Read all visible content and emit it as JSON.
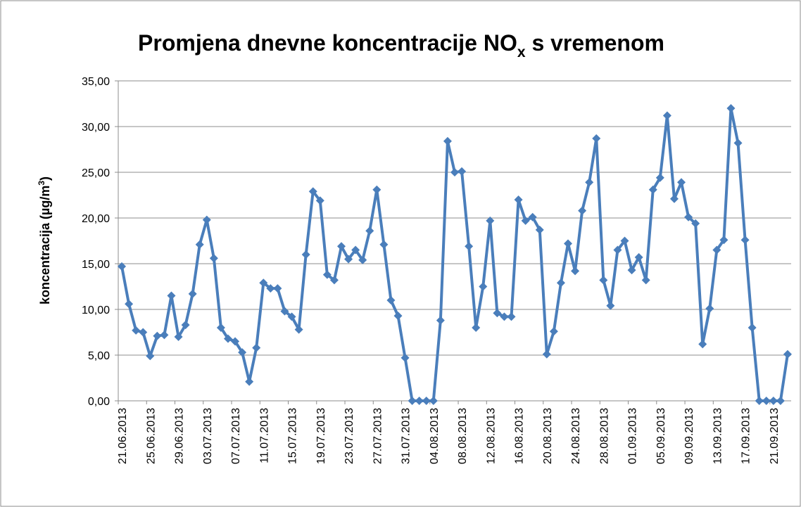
{
  "chart_data": {
    "type": "line",
    "title": [
      "Promjena dnevne koncentracije NO",
      "x",
      " s vremenom"
    ],
    "y_label": [
      "koncentracija (µg/m",
      "3",
      ")"
    ],
    "categories": [
      "21.06.2013",
      null,
      null,
      null,
      "25.06.2013",
      null,
      null,
      null,
      "29.06.2013",
      null,
      null,
      null,
      "03.07.2013",
      null,
      null,
      null,
      "07.07.2013",
      null,
      null,
      null,
      "11.07.2013",
      null,
      null,
      null,
      "15.07.2013",
      null,
      null,
      null,
      "19.07.2013",
      null,
      null,
      null,
      "23.07.2013",
      null,
      null,
      null,
      "27.07.2013",
      null,
      null,
      null,
      "31.07.2013",
      null,
      null,
      null,
      "04.08.2013",
      null,
      null,
      null,
      "08.08.2013",
      null,
      null,
      null,
      "12.08.2013",
      null,
      null,
      null,
      "16.08.2013",
      null,
      null,
      null,
      "20.08.2013",
      null,
      null,
      null,
      "24.08.2013",
      null,
      null,
      null,
      "28.08.2013",
      null,
      null,
      null,
      "01.09.2013",
      null,
      null,
      null,
      "05.09.2013",
      null,
      null,
      null,
      "09.09.2013",
      null,
      null,
      null,
      "13.09.2013",
      null,
      null,
      null,
      "17.09.2013",
      null,
      null,
      null,
      "21.09.2013",
      null,
      null
    ],
    "values": [
      14.7,
      10.6,
      7.7,
      7.5,
      4.9,
      7.1,
      7.2,
      11.5,
      7.0,
      8.3,
      11.7,
      17.1,
      19.8,
      15.6,
      8.0,
      6.8,
      6.5,
      5.3,
      2.1,
      5.8,
      12.9,
      12.3,
      12.3,
      9.8,
      9.2,
      7.8,
      16.0,
      22.9,
      21.9,
      13.8,
      13.2,
      16.9,
      15.5,
      16.5,
      15.4,
      18.6,
      23.1,
      17.1,
      11.0,
      9.3,
      4.7,
      0,
      0,
      0,
      0,
      8.8,
      28.4,
      25.0,
      25.1,
      16.9,
      8.0,
      12.5,
      19.7,
      9.6,
      9.2,
      9.2,
      22.0,
      19.7,
      20.1,
      18.7,
      5.1,
      7.6,
      12.9,
      17.2,
      14.2,
      20.8,
      23.9,
      28.7,
      13.2,
      10.4,
      16.5,
      17.5,
      14.3,
      15.7,
      13.2,
      23.1,
      24.4,
      31.2,
      22.1,
      23.9,
      20.1,
      19.4,
      6.2,
      10.1,
      16.5,
      17.6,
      32.0,
      28.2,
      17.6,
      8.0,
      0,
      0,
      0,
      0,
      5.1
    ],
    "color": "#4a7ebb",
    "ylim": [
      0,
      35
    ],
    "yticks": [
      {
        "value": 0,
        "label": "0,00"
      },
      {
        "value": 5,
        "label": "5,00"
      },
      {
        "value": 10,
        "label": "10,00"
      },
      {
        "value": 15,
        "label": "15,00"
      },
      {
        "value": 20,
        "label": "20,00"
      },
      {
        "value": 25,
        "label": "25,00"
      },
      {
        "value": 30,
        "label": "30,00"
      },
      {
        "value": 35,
        "label": "35,00"
      }
    ],
    "grid": true
  }
}
